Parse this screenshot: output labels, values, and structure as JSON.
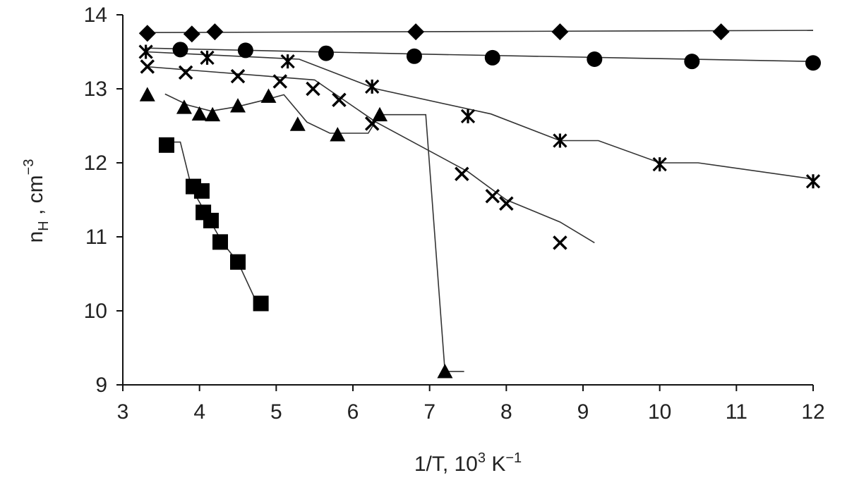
{
  "chart_data": {
    "type": "scatter",
    "xlabel": "1/T, 10³ K⁻¹",
    "ylabel": "nH , cm⁻³",
    "ylabel_main": "n",
    "ylabel_sub": "H",
    "ylabel_rest": " , cm",
    "ylabel_sup": "−3",
    "xlabel_main": "1/T, 10",
    "xlabel_sup1": "3",
    "xlabel_mid": " K",
    "xlabel_sup2": "−1",
    "xlim": [
      3,
      12
    ],
    "ylim": [
      9,
      14
    ],
    "xticks": [
      "3",
      "4",
      "5",
      "6",
      "7",
      "8",
      "9",
      "10",
      "11",
      "12"
    ],
    "yticks": [
      "9",
      "10",
      "11",
      "12",
      "13",
      "14"
    ],
    "grid": false,
    "series": [
      {
        "marker": "diamond",
        "points": [
          [
            3.32,
            13.75
          ],
          [
            3.9,
            13.74
          ],
          [
            4.2,
            13.77
          ],
          [
            6.82,
            13.77
          ],
          [
            8.7,
            13.77
          ],
          [
            10.8,
            13.77
          ]
        ],
        "fit": [
          [
            3.3,
            13.76
          ],
          [
            12,
            13.79
          ]
        ]
      },
      {
        "marker": "circle",
        "points": [
          [
            3.75,
            13.53
          ],
          [
            4.6,
            13.52
          ],
          [
            5.65,
            13.48
          ],
          [
            6.8,
            13.44
          ],
          [
            7.82,
            13.42
          ],
          [
            9.15,
            13.4
          ],
          [
            10.42,
            13.37
          ],
          [
            12.0,
            13.35
          ]
        ],
        "fit": [
          [
            3.3,
            13.55
          ],
          [
            6.8,
            13.47
          ],
          [
            12,
            13.37
          ]
        ]
      },
      {
        "marker": "asterisk",
        "points": [
          [
            3.3,
            13.5
          ],
          [
            4.1,
            13.42
          ],
          [
            5.15,
            13.37
          ],
          [
            6.25,
            13.03
          ],
          [
            7.5,
            12.63
          ],
          [
            8.7,
            12.3
          ],
          [
            10.0,
            11.98
          ],
          [
            12.0,
            11.75
          ]
        ],
        "fit": [
          [
            3.3,
            13.5
          ],
          [
            5.3,
            13.4
          ],
          [
            6.3,
            13.0
          ],
          [
            7.8,
            12.66
          ],
          [
            8.7,
            12.3
          ],
          [
            9.2,
            12.3
          ],
          [
            10.0,
            12.0
          ],
          [
            10.5,
            12.0
          ],
          [
            12.0,
            11.78
          ]
        ]
      },
      {
        "marker": "cross",
        "points": [
          [
            3.32,
            13.3
          ],
          [
            3.82,
            13.22
          ],
          [
            4.5,
            13.17
          ],
          [
            5.05,
            13.1
          ],
          [
            5.48,
            13.0
          ],
          [
            5.82,
            12.85
          ],
          [
            6.25,
            12.53
          ],
          [
            7.42,
            11.85
          ],
          [
            7.82,
            11.55
          ],
          [
            8.0,
            11.45
          ],
          [
            8.7,
            10.92
          ]
        ],
        "fit": [
          [
            3.3,
            13.3
          ],
          [
            5.5,
            13.12
          ],
          [
            6.3,
            12.55
          ],
          [
            7.5,
            11.88
          ],
          [
            8.0,
            11.5
          ],
          [
            8.7,
            11.2
          ],
          [
            9.15,
            10.92
          ]
        ]
      },
      {
        "marker": "triangle",
        "points": [
          [
            3.32,
            12.92
          ],
          [
            3.8,
            12.75
          ],
          [
            4.0,
            12.66
          ],
          [
            4.17,
            12.65
          ],
          [
            4.5,
            12.77
          ],
          [
            4.9,
            12.9
          ],
          [
            5.28,
            12.52
          ],
          [
            5.8,
            12.38
          ],
          [
            6.35,
            12.65
          ],
          [
            7.2,
            9.18
          ]
        ],
        "fit": [
          [
            3.55,
            12.93
          ],
          [
            3.85,
            12.78
          ],
          [
            4.15,
            12.7
          ],
          [
            4.5,
            12.76
          ],
          [
            4.85,
            12.85
          ],
          [
            5.1,
            12.92
          ],
          [
            5.4,
            12.55
          ],
          [
            5.7,
            12.4
          ],
          [
            6.2,
            12.4
          ],
          [
            6.35,
            12.65
          ],
          [
            6.95,
            12.65
          ],
          [
            7.2,
            9.18
          ],
          [
            7.45,
            9.18
          ]
        ]
      },
      {
        "marker": "square",
        "points": [
          [
            3.57,
            12.24
          ],
          [
            3.92,
            11.68
          ],
          [
            4.03,
            11.62
          ],
          [
            4.05,
            11.33
          ],
          [
            4.15,
            11.22
          ],
          [
            4.27,
            10.93
          ],
          [
            4.5,
            10.66
          ],
          [
            4.8,
            10.1
          ]
        ],
        "fit": [
          [
            3.6,
            12.28
          ],
          [
            3.75,
            12.28
          ],
          [
            3.9,
            11.65
          ],
          [
            4.3,
            10.92
          ],
          [
            4.5,
            10.66
          ],
          [
            4.75,
            10.1
          ]
        ]
      }
    ]
  }
}
